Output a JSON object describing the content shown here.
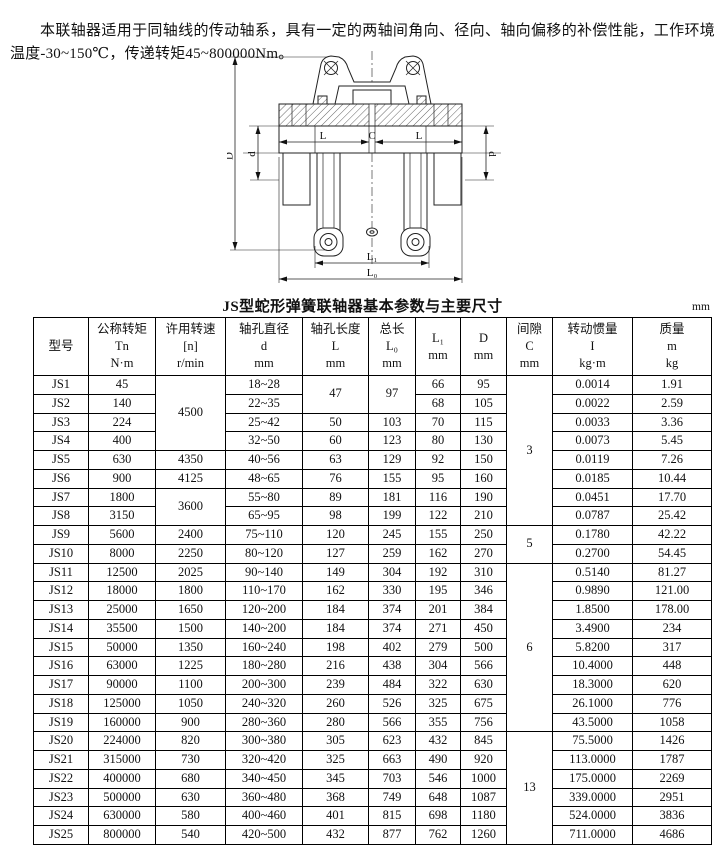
{
  "intro": {
    "text": "本联轴器适用于同轴线的传动轴系，具有一定的两轴间角向、径向、轴向偏移的补偿性能，工作环境温度-30~150℃，传递转矩45~800000Nm。"
  },
  "diagram": {
    "labels": {
      "D": "D",
      "d_left": "d",
      "d_right": "d",
      "L_left": "L",
      "C": "C",
      "L_right": "L",
      "L1": "L₁",
      "L0": "L₀"
    }
  },
  "table": {
    "title": "JS型蛇形弹簧联轴器基本参数与主要尺寸",
    "unit_note": "mm",
    "headers": [
      {
        "lines": [
          "型号"
        ]
      },
      {
        "lines": [
          "公称转矩",
          "Tn",
          "N·m"
        ]
      },
      {
        "lines": [
          "许用转速",
          "[n]",
          "r/min"
        ]
      },
      {
        "lines": [
          "轴孔直径",
          "d",
          "mm"
        ]
      },
      {
        "lines": [
          "轴孔长度",
          "L",
          "mm"
        ]
      },
      {
        "lines": [
          "总长",
          "L₀",
          "mm"
        ]
      },
      {
        "lines": [
          "L₁",
          "mm"
        ]
      },
      {
        "lines": [
          "D",
          "mm"
        ]
      },
      {
        "lines": [
          "间隙",
          "C",
          "mm"
        ]
      },
      {
        "lines": [
          "转动惯量",
          "I",
          "kg·m"
        ]
      },
      {
        "lines": [
          "质量",
          "m",
          "kg"
        ]
      }
    ],
    "rows": [
      {
        "cells": [
          {
            "v": "JS1"
          },
          {
            "v": "45"
          },
          {
            "v": "4500",
            "rs": 4
          },
          {
            "v": "18~28"
          },
          {
            "v": "47",
            "rs": 2
          },
          {
            "v": "97",
            "rs": 2
          },
          {
            "v": "66"
          },
          {
            "v": "95"
          },
          {
            "v": "3",
            "rs": 8
          },
          {
            "v": "0.0014"
          },
          {
            "v": "1.91"
          }
        ]
      },
      {
        "cells": [
          {
            "v": "JS2"
          },
          {
            "v": "140"
          },
          {
            "v": "22~35"
          },
          {
            "v": "68"
          },
          {
            "v": "105"
          },
          {
            "v": "0.0022"
          },
          {
            "v": "2.59"
          }
        ]
      },
      {
        "cells": [
          {
            "v": "JS3"
          },
          {
            "v": "224"
          },
          {
            "v": "25~42"
          },
          {
            "v": "50"
          },
          {
            "v": "103"
          },
          {
            "v": "70"
          },
          {
            "v": "115"
          },
          {
            "v": "0.0033"
          },
          {
            "v": "3.36"
          }
        ]
      },
      {
        "cells": [
          {
            "v": "JS4"
          },
          {
            "v": "400"
          },
          {
            "v": "32~50"
          },
          {
            "v": "60"
          },
          {
            "v": "123"
          },
          {
            "v": "80"
          },
          {
            "v": "130"
          },
          {
            "v": "0.0073"
          },
          {
            "v": "5.45"
          }
        ]
      },
      {
        "cells": [
          {
            "v": "JS5"
          },
          {
            "v": "630"
          },
          {
            "v": "4350"
          },
          {
            "v": "40~56"
          },
          {
            "v": "63"
          },
          {
            "v": "129"
          },
          {
            "v": "92"
          },
          {
            "v": "150"
          },
          {
            "v": "0.0119"
          },
          {
            "v": "7.26"
          }
        ]
      },
      {
        "cells": [
          {
            "v": "JS6"
          },
          {
            "v": "900"
          },
          {
            "v": "4125"
          },
          {
            "v": "48~65"
          },
          {
            "v": "76"
          },
          {
            "v": "155"
          },
          {
            "v": "95"
          },
          {
            "v": "160"
          },
          {
            "v": "0.0185"
          },
          {
            "v": "10.44"
          }
        ]
      },
      {
        "cells": [
          {
            "v": "JS7"
          },
          {
            "v": "1800"
          },
          {
            "v": "3600",
            "rs": 2
          },
          {
            "v": "55~80"
          },
          {
            "v": "89"
          },
          {
            "v": "181"
          },
          {
            "v": "116"
          },
          {
            "v": "190"
          },
          {
            "v": "0.0451"
          },
          {
            "v": "17.70"
          }
        ]
      },
      {
        "cells": [
          {
            "v": "JS8"
          },
          {
            "v": "3150"
          },
          {
            "v": "65~95"
          },
          {
            "v": "98"
          },
          {
            "v": "199"
          },
          {
            "v": "122"
          },
          {
            "v": "210"
          },
          {
            "v": "0.0787"
          },
          {
            "v": "25.42"
          }
        ]
      },
      {
        "cells": [
          {
            "v": "JS9"
          },
          {
            "v": "5600"
          },
          {
            "v": "2400"
          },
          {
            "v": "75~110"
          },
          {
            "v": "120"
          },
          {
            "v": "245"
          },
          {
            "v": "155"
          },
          {
            "v": "250"
          },
          {
            "v": "5",
            "rs": 2
          },
          {
            "v": "0.1780"
          },
          {
            "v": "42.22"
          }
        ]
      },
      {
        "cells": [
          {
            "v": "JS10"
          },
          {
            "v": "8000"
          },
          {
            "v": "2250"
          },
          {
            "v": "80~120"
          },
          {
            "v": "127"
          },
          {
            "v": "259"
          },
          {
            "v": "162"
          },
          {
            "v": "270"
          },
          {
            "v": "0.2700"
          },
          {
            "v": "54.45"
          }
        ]
      },
      {
        "cells": [
          {
            "v": "JS11"
          },
          {
            "v": "12500"
          },
          {
            "v": "2025"
          },
          {
            "v": "90~140"
          },
          {
            "v": "149"
          },
          {
            "v": "304"
          },
          {
            "v": "192"
          },
          {
            "v": "310"
          },
          {
            "v": "6",
            "rs": 9
          },
          {
            "v": "0.5140"
          },
          {
            "v": "81.27"
          }
        ]
      },
      {
        "cells": [
          {
            "v": "JS12"
          },
          {
            "v": "18000"
          },
          {
            "v": "1800"
          },
          {
            "v": "110~170"
          },
          {
            "v": "162"
          },
          {
            "v": "330"
          },
          {
            "v": "195"
          },
          {
            "v": "346"
          },
          {
            "v": "0.9890"
          },
          {
            "v": "121.00"
          }
        ]
      },
      {
        "cells": [
          {
            "v": "JS13"
          },
          {
            "v": "25000"
          },
          {
            "v": "1650"
          },
          {
            "v": "120~200"
          },
          {
            "v": "184"
          },
          {
            "v": "374"
          },
          {
            "v": "201"
          },
          {
            "v": "384"
          },
          {
            "v": "1.8500"
          },
          {
            "v": "178.00"
          }
        ]
      },
      {
        "cells": [
          {
            "v": "JS14"
          },
          {
            "v": "35500"
          },
          {
            "v": "1500"
          },
          {
            "v": "140~200"
          },
          {
            "v": "184"
          },
          {
            "v": "374"
          },
          {
            "v": "271"
          },
          {
            "v": "450"
          },
          {
            "v": "3.4900"
          },
          {
            "v": "234"
          }
        ]
      },
      {
        "cells": [
          {
            "v": "JS15"
          },
          {
            "v": "50000"
          },
          {
            "v": "1350"
          },
          {
            "v": "160~240"
          },
          {
            "v": "198"
          },
          {
            "v": "402"
          },
          {
            "v": "279"
          },
          {
            "v": "500"
          },
          {
            "v": "5.8200"
          },
          {
            "v": "317"
          }
        ]
      },
      {
        "cells": [
          {
            "v": "JS16"
          },
          {
            "v": "63000"
          },
          {
            "v": "1225"
          },
          {
            "v": "180~280"
          },
          {
            "v": "216"
          },
          {
            "v": "438"
          },
          {
            "v": "304"
          },
          {
            "v": "566"
          },
          {
            "v": "10.4000"
          },
          {
            "v": "448"
          }
        ]
      },
      {
        "cells": [
          {
            "v": "JS17"
          },
          {
            "v": "90000"
          },
          {
            "v": "1100"
          },
          {
            "v": "200~300"
          },
          {
            "v": "239"
          },
          {
            "v": "484"
          },
          {
            "v": "322"
          },
          {
            "v": "630"
          },
          {
            "v": "18.3000"
          },
          {
            "v": "620"
          }
        ]
      },
      {
        "cells": [
          {
            "v": "JS18"
          },
          {
            "v": "125000"
          },
          {
            "v": "1050"
          },
          {
            "v": "240~320"
          },
          {
            "v": "260"
          },
          {
            "v": "526"
          },
          {
            "v": "325"
          },
          {
            "v": "675"
          },
          {
            "v": "26.1000"
          },
          {
            "v": "776"
          }
        ]
      },
      {
        "cells": [
          {
            "v": "JS19"
          },
          {
            "v": "160000"
          },
          {
            "v": "900"
          },
          {
            "v": "280~360"
          },
          {
            "v": "280"
          },
          {
            "v": "566"
          },
          {
            "v": "355"
          },
          {
            "v": "756"
          },
          {
            "v": "43.5000"
          },
          {
            "v": "1058"
          }
        ]
      },
      {
        "cells": [
          {
            "v": "JS20"
          },
          {
            "v": "224000"
          },
          {
            "v": "820"
          },
          {
            "v": "300~380"
          },
          {
            "v": "305"
          },
          {
            "v": "623"
          },
          {
            "v": "432"
          },
          {
            "v": "845"
          },
          {
            "v": "13",
            "rs": 6
          },
          {
            "v": "75.5000"
          },
          {
            "v": "1426"
          }
        ]
      },
      {
        "cells": [
          {
            "v": "JS21"
          },
          {
            "v": "315000"
          },
          {
            "v": "730"
          },
          {
            "v": "320~420"
          },
          {
            "v": "325"
          },
          {
            "v": "663"
          },
          {
            "v": "490"
          },
          {
            "v": "920"
          },
          {
            "v": "113.0000"
          },
          {
            "v": "1787"
          }
        ]
      },
      {
        "cells": [
          {
            "v": "JS22"
          },
          {
            "v": "400000"
          },
          {
            "v": "680"
          },
          {
            "v": "340~450"
          },
          {
            "v": "345"
          },
          {
            "v": "703"
          },
          {
            "v": "546"
          },
          {
            "v": "1000"
          },
          {
            "v": "175.0000"
          },
          {
            "v": "2269"
          }
        ]
      },
      {
        "cells": [
          {
            "v": "JS23"
          },
          {
            "v": "500000"
          },
          {
            "v": "630"
          },
          {
            "v": "360~480"
          },
          {
            "v": "368"
          },
          {
            "v": "749"
          },
          {
            "v": "648"
          },
          {
            "v": "1087"
          },
          {
            "v": "339.0000"
          },
          {
            "v": "2951"
          }
        ]
      },
      {
        "cells": [
          {
            "v": "JS24"
          },
          {
            "v": "630000"
          },
          {
            "v": "580"
          },
          {
            "v": "400~460"
          },
          {
            "v": "401"
          },
          {
            "v": "815"
          },
          {
            "v": "698"
          },
          {
            "v": "1180"
          },
          {
            "v": "524.0000"
          },
          {
            "v": "3836"
          }
        ]
      },
      {
        "cells": [
          {
            "v": "JS25"
          },
          {
            "v": "800000"
          },
          {
            "v": "540"
          },
          {
            "v": "420~500"
          },
          {
            "v": "432"
          },
          {
            "v": "877"
          },
          {
            "v": "762"
          },
          {
            "v": "1260"
          },
          {
            "v": "711.0000"
          },
          {
            "v": "4686"
          }
        ]
      }
    ]
  }
}
